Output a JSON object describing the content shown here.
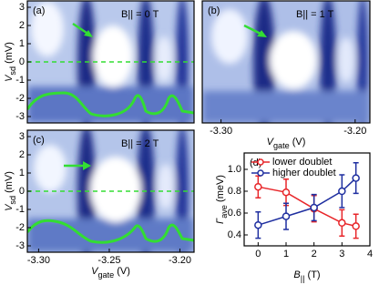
{
  "chart_data": [
    {
      "type": "heatmap",
      "panel": "(a)",
      "field_label": "B|| = 0 T",
      "ylabel": [
        "V",
        "sd",
        " (mV)"
      ],
      "xlim": [
        -3.308,
        -3.19
      ],
      "ylim": [
        -3.35,
        3.35
      ],
      "yticks": [
        3,
        2,
        1,
        0,
        -1,
        -2,
        -3
      ]
    },
    {
      "type": "heatmap",
      "panel": "(b)",
      "field_label": "B|| = 1 T",
      "xlabel": [
        "V",
        "gate",
        " (V)"
      ],
      "xlim": [
        -3.314,
        -3.189
      ],
      "ylim": [
        -3.35,
        3.35
      ],
      "xticks": [
        {
          "value": -3.3,
          "label": "-3.30"
        },
        {
          "value": -3.2,
          "label": "-3.20"
        }
      ]
    },
    {
      "type": "heatmap",
      "panel": "(c)",
      "field_label": "B|| = 2 T",
      "ylabel": [
        "V",
        "sd",
        " (mV)"
      ],
      "xlabel": [
        "V",
        "gate",
        " (V)"
      ],
      "xlim": [
        -3.308,
        -3.19
      ],
      "ylim": [
        -3.35,
        3.35
      ],
      "yticks": [
        3,
        2,
        1,
        0,
        -1,
        -2,
        -3
      ],
      "xticks": [
        {
          "value": -3.3,
          "label": "-3.30"
        },
        -3.25,
        {
          "value": -3.2,
          "label": "-3.20"
        }
      ]
    },
    {
      "type": "errorline",
      "panel": "(d)",
      "ylabel": [
        "Γ",
        "ave",
        " (meV)"
      ],
      "xlabel": [
        "B",
        "||",
        " (T)"
      ],
      "xlim": [
        -0.5,
        4
      ],
      "ylim": [
        0.3,
        1.15
      ],
      "xticks": [
        0,
        1,
        2,
        3,
        4
      ],
      "yticks": [
        {
          "value": 1.0,
          "label": "1.0"
        },
        0.8,
        0.6,
        0.4
      ],
      "legend": "top-left",
      "x": [
        0,
        1,
        2,
        3,
        3.5
      ],
      "series": [
        {
          "name": "lower doublet",
          "color": "#e8262a",
          "values": [
            0.84,
            0.79,
            0.64,
            0.51,
            0.48
          ],
          "errors": [
            0.1,
            0.12,
            0.12,
            0.12,
            0.11
          ]
        },
        {
          "name": "higher doublet",
          "color": "#1f2fa0",
          "values": [
            0.49,
            0.57,
            0.65,
            0.8,
            0.92
          ],
          "errors": [
            0.12,
            0.12,
            0.12,
            0.15,
            0.14
          ]
        }
      ]
    }
  ]
}
